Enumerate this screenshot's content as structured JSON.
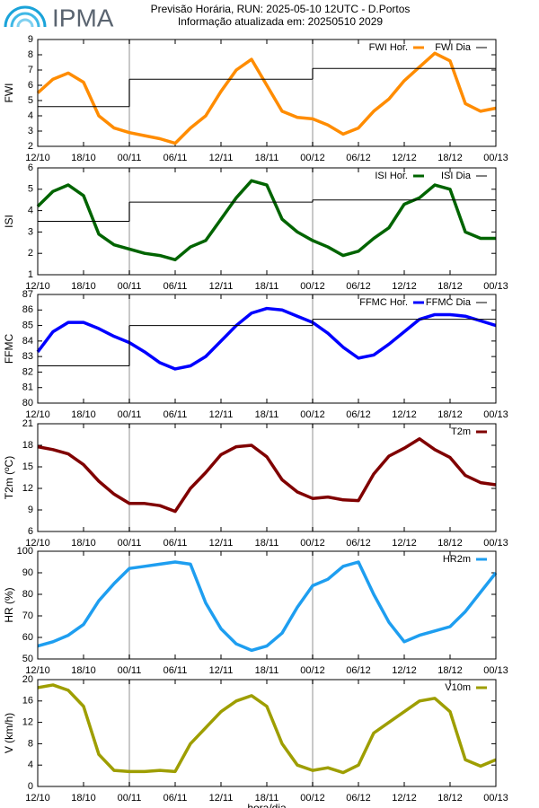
{
  "header": {
    "logo": "IPMA",
    "title": "Previsão Horária, RUN: 2025-05-10 12UTC - D.Portos",
    "subtitle": "Informação atualizada em: 20250510 2029"
  },
  "chart_data": [
    {
      "type": "line",
      "ylabel": "FWI",
      "xlim": [
        0,
        60
      ],
      "xticks": [
        {
          "value": 0,
          "label": "12/10"
        },
        {
          "value": 6,
          "label": "18/10"
        },
        {
          "value": 12,
          "label": "00/11"
        },
        {
          "value": 18,
          "label": "06/11"
        },
        {
          "value": 24,
          "label": "12/11"
        },
        {
          "value": 30,
          "label": "18/11"
        },
        {
          "value": 36,
          "label": "00/12"
        },
        {
          "value": 42,
          "label": "06/12"
        },
        {
          "value": 48,
          "label": "12/12"
        },
        {
          "value": 54,
          "label": "18/12"
        },
        {
          "value": 60,
          "label": "00/13"
        }
      ],
      "vlines": [
        12,
        36
      ],
      "ylim": [
        2,
        9
      ],
      "yticks": [
        2,
        3,
        4,
        5,
        6,
        7,
        8,
        9
      ],
      "legend": "upper right",
      "series": [
        {
          "name": "FWI Hor.",
          "color": "#ff8c00",
          "x": [
            0,
            2,
            4,
            6,
            8,
            10,
            12,
            14,
            16,
            18,
            20,
            22,
            24,
            26,
            28,
            30,
            32,
            34,
            36,
            38,
            40,
            42,
            44,
            46,
            48,
            50,
            52,
            54,
            56,
            58,
            60
          ],
          "values": [
            5.5,
            6.4,
            6.8,
            6.2,
            4.0,
            3.2,
            2.9,
            2.7,
            2.5,
            2.2,
            3.2,
            4.0,
            5.6,
            7.0,
            7.7,
            6.0,
            4.3,
            3.9,
            3.8,
            3.4,
            2.8,
            3.2,
            4.3,
            5.1,
            6.3,
            7.2,
            8.1,
            7.6,
            4.8,
            4.3,
            4.5
          ]
        },
        {
          "name": "FWI Dia",
          "color": "#000000",
          "step": true,
          "x": [
            0,
            12,
            36
          ],
          "values": [
            4.6,
            6.4,
            7.1
          ]
        }
      ]
    },
    {
      "type": "line",
      "ylabel": "ISI",
      "xlim": [
        0,
        60
      ],
      "xticks": [
        {
          "value": 0,
          "label": "12/10"
        },
        {
          "value": 6,
          "label": "18/10"
        },
        {
          "value": 12,
          "label": "00/11"
        },
        {
          "value": 18,
          "label": "06/11"
        },
        {
          "value": 24,
          "label": "12/11"
        },
        {
          "value": 30,
          "label": "18/11"
        },
        {
          "value": 36,
          "label": "00/12"
        },
        {
          "value": 42,
          "label": "06/12"
        },
        {
          "value": 48,
          "label": "12/12"
        },
        {
          "value": 54,
          "label": "18/12"
        },
        {
          "value": 60,
          "label": "00/13"
        }
      ],
      "vlines": [
        12,
        36
      ],
      "ylim": [
        1,
        6
      ],
      "yticks": [
        1,
        2,
        3,
        4,
        5,
        6
      ],
      "legend": "upper right",
      "series": [
        {
          "name": "ISI Hor.",
          "color": "#006400",
          "x": [
            0,
            2,
            4,
            6,
            8,
            10,
            12,
            14,
            16,
            18,
            20,
            22,
            24,
            26,
            28,
            30,
            32,
            34,
            36,
            38,
            40,
            42,
            44,
            46,
            48,
            50,
            52,
            54,
            56,
            58,
            60
          ],
          "values": [
            4.2,
            4.9,
            5.2,
            4.7,
            2.9,
            2.4,
            2.2,
            2.0,
            1.9,
            1.7,
            2.3,
            2.6,
            3.6,
            4.6,
            5.4,
            5.2,
            3.6,
            3.0,
            2.6,
            2.3,
            1.9,
            2.1,
            2.7,
            3.2,
            4.3,
            4.6,
            5.2,
            5.0,
            3.0,
            2.7,
            2.7
          ]
        },
        {
          "name": "ISI Dia",
          "color": "#000000",
          "step": true,
          "x": [
            0,
            12,
            36
          ],
          "values": [
            3.5,
            4.4,
            4.5
          ]
        }
      ]
    },
    {
      "type": "line",
      "ylabel": "FFMC",
      "xlim": [
        0,
        60
      ],
      "xticks": [
        {
          "value": 0,
          "label": "12/10"
        },
        {
          "value": 6,
          "label": "18/10"
        },
        {
          "value": 12,
          "label": "00/11"
        },
        {
          "value": 18,
          "label": "06/11"
        },
        {
          "value": 24,
          "label": "12/11"
        },
        {
          "value": 30,
          "label": "18/11"
        },
        {
          "value": 36,
          "label": "00/12"
        },
        {
          "value": 42,
          "label": "06/12"
        },
        {
          "value": 48,
          "label": "12/12"
        },
        {
          "value": 54,
          "label": "18/12"
        },
        {
          "value": 60,
          "label": "00/13"
        }
      ],
      "vlines": [
        12,
        36
      ],
      "ylim": [
        80,
        87
      ],
      "yticks": [
        80,
        81,
        82,
        83,
        84,
        85,
        86,
        87
      ],
      "legend": "upper right",
      "series": [
        {
          "name": "FFMC Hor.",
          "color": "#0000ff",
          "x": [
            0,
            2,
            4,
            6,
            8,
            10,
            12,
            14,
            16,
            18,
            20,
            22,
            24,
            26,
            28,
            30,
            32,
            34,
            36,
            38,
            40,
            42,
            44,
            46,
            48,
            50,
            52,
            54,
            56,
            58,
            60
          ],
          "values": [
            83.3,
            84.6,
            85.2,
            85.2,
            84.8,
            84.3,
            83.9,
            83.3,
            82.6,
            82.2,
            82.4,
            83.0,
            84.0,
            85.0,
            85.8,
            86.1,
            86.0,
            85.6,
            85.2,
            84.5,
            83.6,
            82.9,
            83.1,
            83.8,
            84.6,
            85.4,
            85.7,
            85.7,
            85.6,
            85.3,
            85.0
          ]
        },
        {
          "name": "FFMC Dia",
          "color": "#000000",
          "step": true,
          "x": [
            0,
            12,
            36
          ],
          "values": [
            82.4,
            85.0,
            85.4
          ]
        }
      ]
    },
    {
      "type": "line",
      "ylabel": "T2m (ºC)",
      "xlim": [
        0,
        60
      ],
      "xticks": [
        {
          "value": 0,
          "label": "12/10"
        },
        {
          "value": 6,
          "label": "18/10"
        },
        {
          "value": 12,
          "label": "00/11"
        },
        {
          "value": 18,
          "label": "06/11"
        },
        {
          "value": 24,
          "label": "12/11"
        },
        {
          "value": 30,
          "label": "18/11"
        },
        {
          "value": 36,
          "label": "00/12"
        },
        {
          "value": 42,
          "label": "06/12"
        },
        {
          "value": 48,
          "label": "12/12"
        },
        {
          "value": 54,
          "label": "18/12"
        },
        {
          "value": 60,
          "label": "00/13"
        }
      ],
      "vlines": [
        12,
        36
      ],
      "ylim": [
        6,
        21
      ],
      "yticks": [
        6,
        9,
        12,
        15,
        18,
        21
      ],
      "legend": "upper right",
      "series": [
        {
          "name": "T2m",
          "color": "#800000",
          "x": [
            0,
            2,
            4,
            6,
            8,
            10,
            12,
            14,
            16,
            18,
            20,
            22,
            24,
            26,
            28,
            30,
            32,
            34,
            36,
            38,
            40,
            42,
            44,
            46,
            48,
            50,
            52,
            54,
            56,
            58,
            60
          ],
          "values": [
            17.8,
            17.4,
            16.8,
            15.3,
            13.0,
            11.2,
            9.9,
            9.9,
            9.6,
            8.8,
            12.0,
            14.2,
            16.7,
            17.8,
            18.0,
            16.4,
            13.2,
            11.5,
            10.6,
            10.8,
            10.4,
            10.3,
            14.0,
            16.5,
            17.6,
            18.9,
            17.4,
            16.3,
            13.8,
            12.8,
            12.5
          ]
        }
      ]
    },
    {
      "type": "line",
      "ylabel": "HR (%)",
      "xlim": [
        0,
        60
      ],
      "xticks": [
        {
          "value": 0,
          "label": "12/10"
        },
        {
          "value": 6,
          "label": "18/10"
        },
        {
          "value": 12,
          "label": "00/11"
        },
        {
          "value": 18,
          "label": "06/11"
        },
        {
          "value": 24,
          "label": "12/11"
        },
        {
          "value": 30,
          "label": "18/11"
        },
        {
          "value": 36,
          "label": "00/12"
        },
        {
          "value": 42,
          "label": "06/12"
        },
        {
          "value": 48,
          "label": "12/12"
        },
        {
          "value": 54,
          "label": "18/12"
        },
        {
          "value": 60,
          "label": "00/13"
        }
      ],
      "vlines": [
        12,
        36
      ],
      "ylim": [
        50,
        100
      ],
      "yticks": [
        50,
        60,
        70,
        80,
        90,
        100
      ],
      "legend": "upper right",
      "series": [
        {
          "name": "HR2m",
          "color": "#1e9ef0",
          "x": [
            0,
            2,
            4,
            6,
            8,
            10,
            12,
            14,
            16,
            18,
            20,
            22,
            24,
            26,
            28,
            30,
            32,
            34,
            36,
            38,
            40,
            42,
            44,
            46,
            48,
            50,
            52,
            54,
            56,
            58,
            60
          ],
          "values": [
            56,
            58,
            61,
            66,
            77,
            85,
            92,
            93,
            94,
            95,
            94,
            76,
            64,
            57,
            54,
            56,
            62,
            74,
            84,
            87,
            93,
            95,
            80,
            67,
            58,
            61,
            63,
            65,
            72,
            81,
            90
          ]
        }
      ]
    },
    {
      "type": "line",
      "ylabel": "V (km/h)",
      "xlabel": "hora/dia",
      "xlim": [
        0,
        60
      ],
      "xticks": [
        {
          "value": 0,
          "label": "12/10"
        },
        {
          "value": 6,
          "label": "18/10"
        },
        {
          "value": 12,
          "label": "00/11"
        },
        {
          "value": 18,
          "label": "06/11"
        },
        {
          "value": 24,
          "label": "12/11"
        },
        {
          "value": 30,
          "label": "18/11"
        },
        {
          "value": 36,
          "label": "00/12"
        },
        {
          "value": 42,
          "label": "06/12"
        },
        {
          "value": 48,
          "label": "12/12"
        },
        {
          "value": 54,
          "label": "18/12"
        },
        {
          "value": 60,
          "label": "00/13"
        }
      ],
      "vlines": [
        12,
        36
      ],
      "ylim": [
        0,
        20
      ],
      "yticks": [
        0,
        4,
        8,
        12,
        16,
        20
      ],
      "legend": "upper right",
      "series": [
        {
          "name": "V10m",
          "color": "#9e9e00",
          "x": [
            0,
            2,
            4,
            6,
            8,
            10,
            12,
            14,
            16,
            18,
            20,
            22,
            24,
            26,
            28,
            30,
            32,
            34,
            36,
            38,
            40,
            42,
            44,
            46,
            48,
            50,
            52,
            54,
            56,
            58,
            60
          ],
          "values": [
            18.5,
            19,
            18,
            15,
            6,
            3,
            2.8,
            2.8,
            3,
            2.8,
            8,
            11,
            14,
            16,
            17,
            15,
            8,
            4,
            3,
            3.5,
            2.6,
            4,
            10,
            12,
            14,
            16,
            16.5,
            14,
            5,
            3.8,
            5
          ]
        }
      ]
    }
  ]
}
